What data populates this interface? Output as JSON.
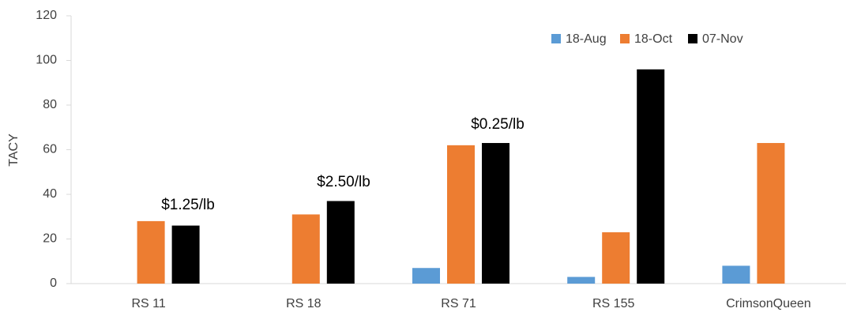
{
  "chart_data": {
    "type": "bar",
    "y_label": "TACY",
    "categories": [
      "RS 11",
      "RS 18",
      "RS 71",
      "RS 155",
      "CrimsonQueen"
    ],
    "series": [
      {
        "name": "18-Aug",
        "color": "#5b9bd5",
        "values": [
          null,
          null,
          7,
          3,
          8
        ]
      },
      {
        "name": "18-Oct",
        "color": "#ed7d31",
        "values": [
          28,
          31,
          62,
          23,
          63
        ]
      },
      {
        "name": "07-Nov",
        "color": "#000000",
        "values": [
          26,
          37,
          63,
          96,
          null
        ]
      }
    ],
    "annotations": [
      "$1.25/lb",
      "$2.50/lb",
      "$0.25/lb"
    ],
    "ylim": [
      0,
      120
    ],
    "yticks": [
      0,
      20,
      40,
      60,
      80,
      100,
      120
    ],
    "grid": false,
    "legend": "upper right"
  }
}
